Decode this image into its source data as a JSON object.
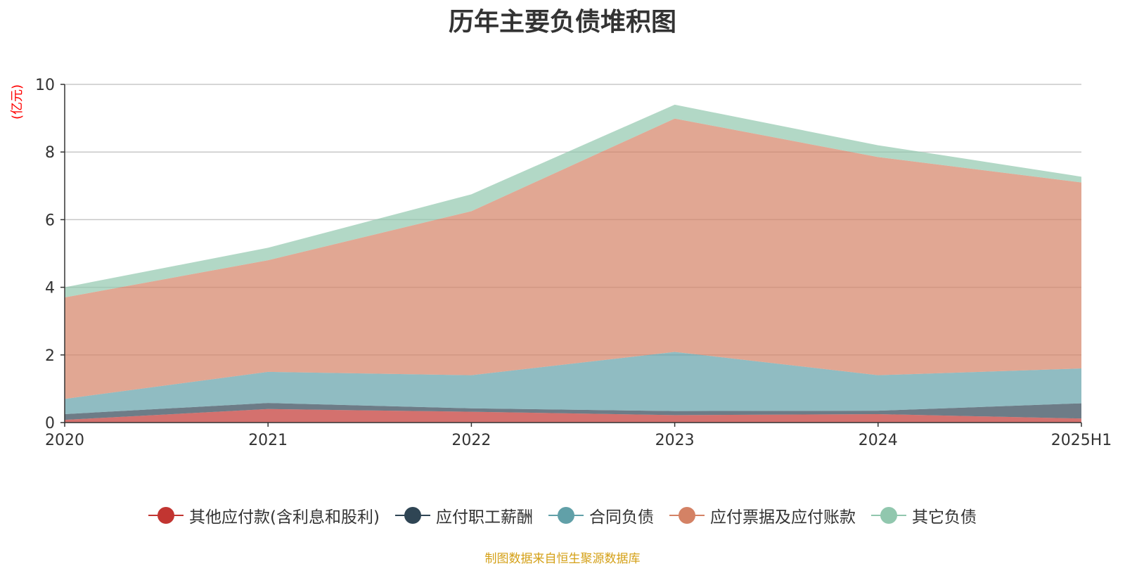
{
  "chart_data": {
    "type": "area",
    "stacked": true,
    "title": "历年主要负债堆积图",
    "ylabel": "亿元",
    "ylim": [
      0,
      10
    ],
    "yticks": [
      "0",
      "2",
      "4",
      "6",
      "8",
      "10"
    ],
    "categories": [
      "2020",
      "2021",
      "2022",
      "2023",
      "2024",
      "2025H1"
    ],
    "grid": true,
    "legend_position": "bottom",
    "series": [
      {
        "name": "其他应付款(含利息和股利)",
        "color": "#c23531",
        "values": [
          0.08,
          0.4,
          0.32,
          0.22,
          0.25,
          0.12
        ]
      },
      {
        "name": "应付职工薪酬",
        "color": "#2f4554",
        "values": [
          0.17,
          0.18,
          0.1,
          0.12,
          0.1,
          0.45
        ]
      },
      {
        "name": "合同负债",
        "color": "#61a0a8",
        "values": [
          0.45,
          0.92,
          0.98,
          1.75,
          1.05,
          1.03
        ]
      },
      {
        "name": "应付票据及应付账款",
        "color": "#d48265",
        "values": [
          3.0,
          3.3,
          4.85,
          6.9,
          6.45,
          5.5
        ]
      },
      {
        "name": "其它负债",
        "color": "#91c7ae",
        "values": [
          0.3,
          0.37,
          0.5,
          0.41,
          0.35,
          0.17
        ]
      }
    ],
    "source": "制图数据来自恒生聚源数据库"
  }
}
